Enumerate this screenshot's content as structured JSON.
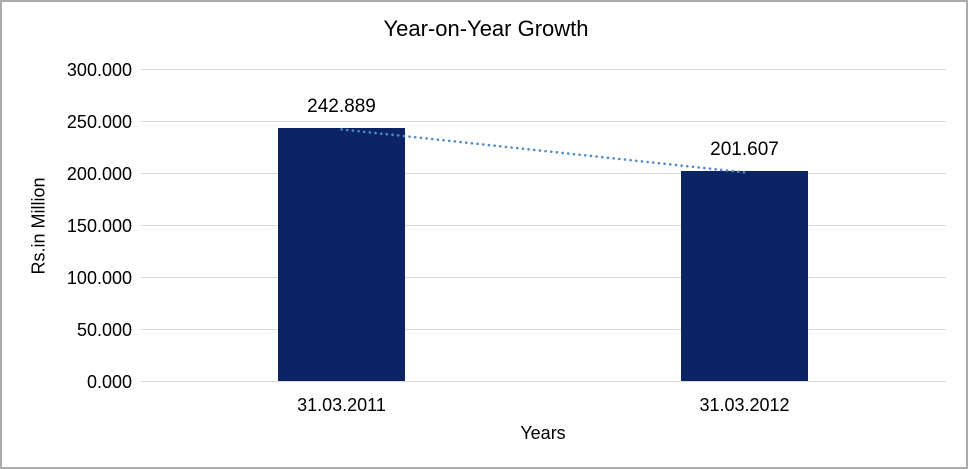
{
  "chart_data": {
    "type": "bar",
    "title": "Year-on-Year Growth",
    "categories": [
      "31.03.2011",
      "31.03.2012"
    ],
    "values": [
      242.889,
      201.607
    ],
    "data_labels": [
      "242.889",
      "201.607"
    ],
    "xlabel": "Years",
    "ylabel": "Rs.in Million",
    "ylim": [
      0,
      300
    ],
    "ytick_step": 50,
    "ytick_labels": [
      "0.000",
      "50.000",
      "100.000",
      "150.000",
      "200.000",
      "250.000",
      "300.000"
    ],
    "grid": true,
    "legend": "none",
    "bar_color": "#0b2463",
    "gridline_color": "#d9d9d9",
    "trendline": {
      "type": "linear",
      "style": "dotted",
      "color": "#528ac5",
      "points": [
        242.889,
        201.607
      ]
    }
  }
}
